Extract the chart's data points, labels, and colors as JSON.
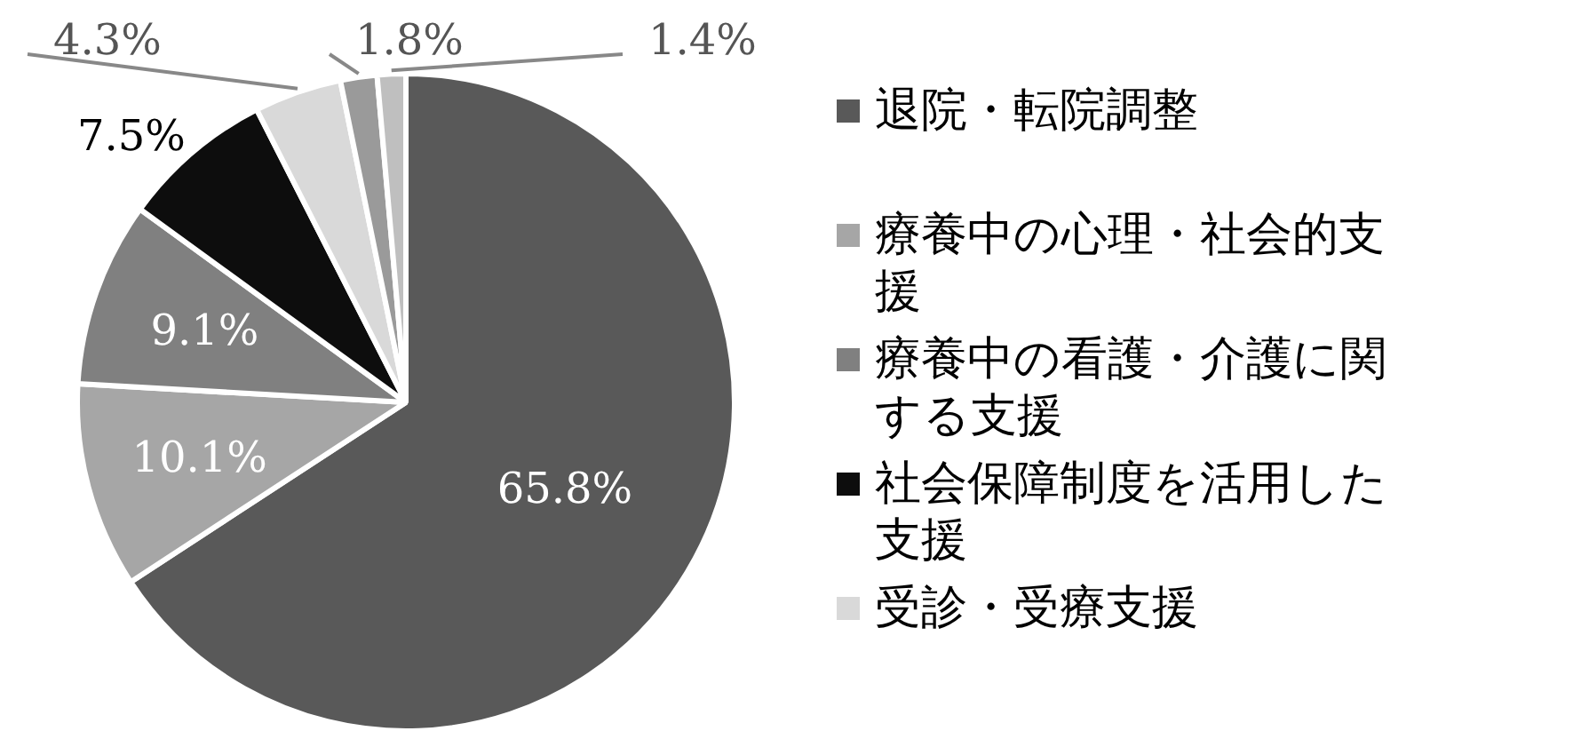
{
  "chart_data": {
    "type": "pie",
    "categories": [
      "退院・転院調整",
      "療養中の心理・社会的支援",
      "療養中の看護・介護に関する支援",
      "社会保障制度を活用した支援",
      "受診・受療支援",
      null,
      null
    ],
    "values": [
      65.8,
      10.1,
      9.1,
      7.5,
      4.3,
      1.8,
      1.4
    ],
    "colors": [
      "#595959",
      "#a6a6a6",
      "#808080",
      "#0d0d0d",
      "#d9d9d9",
      "#9a9a9a",
      "#bfbfbf"
    ],
    "value_labels": [
      "65.8%",
      "10.1%",
      "9.1%",
      "7.5%",
      "4.3%",
      "1.8%",
      "1.4%"
    ],
    "legend": "right"
  }
}
